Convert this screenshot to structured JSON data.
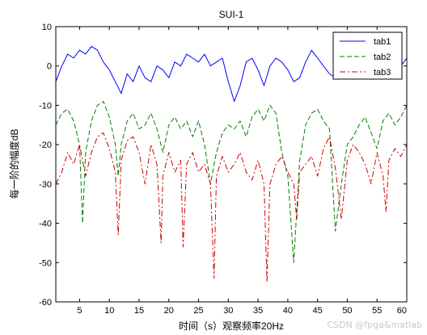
{
  "chart_data": {
    "type": "line",
    "title": "SUI-1",
    "xlabel": "时间（s）观察频率20Hz",
    "ylabel": "每一阶的幅度dB",
    "xlim": [
      1,
      60
    ],
    "ylim": [
      -60,
      10
    ],
    "xticks": [
      5,
      10,
      15,
      20,
      25,
      30,
      35,
      40,
      45,
      50,
      55,
      60
    ],
    "yticks": [
      10,
      0,
      -10,
      -20,
      -30,
      -40,
      -50,
      -60
    ],
    "grid": false,
    "legend_position": "top-right",
    "series": [
      {
        "name": "tab1",
        "color": "#0000ff",
        "style": "solid",
        "x": [
          1,
          2,
          3,
          4,
          5,
          6,
          7,
          8,
          9,
          10,
          11,
          12,
          13,
          14,
          15,
          16,
          17,
          18,
          19,
          20,
          21,
          22,
          23,
          24,
          25,
          26,
          27,
          28,
          29,
          30,
          31,
          32,
          33,
          34,
          35,
          36,
          37,
          38,
          39,
          40,
          41,
          42,
          43,
          44,
          45,
          46,
          47,
          48,
          49,
          50,
          51,
          52,
          53,
          54,
          55,
          56,
          57,
          58,
          59,
          60
        ],
        "y": [
          -4,
          0,
          3,
          2,
          4,
          3,
          5,
          4,
          1,
          -1,
          -4,
          -7,
          -2,
          -4,
          0,
          -3,
          -4,
          0,
          -1,
          -3,
          1,
          0,
          3,
          2,
          1,
          3,
          0,
          1,
          2,
          -4,
          -9,
          -5,
          1,
          2,
          -1,
          -5,
          0,
          2,
          1,
          -1,
          -4,
          -3,
          1,
          4,
          2,
          0,
          -2,
          -3,
          -2,
          1,
          3,
          2,
          1,
          0,
          2,
          4,
          3,
          1,
          0,
          2
        ]
      },
      {
        "name": "tab2",
        "color": "#008000",
        "style": "dashed",
        "x": [
          1,
          2,
          3,
          4,
          5,
          5.5,
          6,
          7,
          8,
          9,
          10,
          11,
          11.5,
          12,
          13,
          14,
          15,
          16,
          17,
          18,
          19,
          20,
          21,
          22,
          23,
          24,
          25,
          26,
          27,
          28,
          29,
          30,
          31,
          32,
          33,
          34,
          35,
          36,
          37,
          38,
          39,
          40,
          41,
          42,
          43,
          44,
          45,
          46,
          47,
          48,
          49,
          50,
          51,
          52,
          53,
          54,
          55,
          56,
          57,
          58,
          59,
          60
        ],
        "y": [
          -15,
          -12,
          -11,
          -14,
          -20,
          -40,
          -22,
          -14,
          -10,
          -9,
          -13,
          -20,
          -28,
          -20,
          -14,
          -12,
          -16,
          -15,
          -12,
          -16,
          -22,
          -15,
          -13,
          -16,
          -14,
          -18,
          -14,
          -20,
          -30,
          -22,
          -17,
          -15,
          -16,
          -14,
          -18,
          -13,
          -11,
          -14,
          -10,
          -12,
          -22,
          -28,
          -50,
          -24,
          -15,
          -12,
          -11,
          -14,
          -16,
          -42,
          -30,
          -20,
          -18,
          -15,
          -13,
          -17,
          -21,
          -14,
          -12,
          -15,
          -13,
          -10
        ]
      },
      {
        "name": "tab3",
        "color": "#cc0000",
        "style": "dashdot",
        "x": [
          1,
          2,
          3,
          4,
          5,
          6,
          7,
          8,
          9,
          10,
          11,
          11.5,
          12,
          13,
          14,
          15,
          16,
          17,
          18,
          18.7,
          19,
          20,
          21,
          22,
          22.4,
          23,
          24,
          25,
          26,
          27,
          27.6,
          28,
          29,
          30,
          31,
          32,
          33,
          34,
          35,
          36,
          36.5,
          37,
          38,
          39,
          40,
          41,
          41.5,
          42,
          43,
          44,
          45,
          46,
          47,
          48,
          49,
          50,
          51,
          52,
          53,
          54,
          55,
          56,
          56.5,
          57,
          58,
          59,
          60
        ],
        "y": [
          -30,
          -27,
          -22,
          -25,
          -20,
          -28,
          -22,
          -18,
          -17,
          -21,
          -27,
          -43,
          -24,
          -19,
          -18,
          -22,
          -30,
          -20,
          -25,
          -45,
          -28,
          -22,
          -27,
          -24,
          -46,
          -25,
          -22,
          -27,
          -25,
          -30,
          -54,
          -28,
          -23,
          -27,
          -25,
          -22,
          -27,
          -29,
          -24,
          -30,
          -55,
          -30,
          -25,
          -23,
          -27,
          -30,
          -39,
          -27,
          -25,
          -23,
          -28,
          -21,
          -18,
          -26,
          -39,
          -24,
          -20,
          -22,
          -25,
          -30,
          -22,
          -28,
          -37,
          -24,
          -21,
          -23,
          -20
        ]
      }
    ]
  },
  "watermark_text": "CSDN @fpga&matlab"
}
